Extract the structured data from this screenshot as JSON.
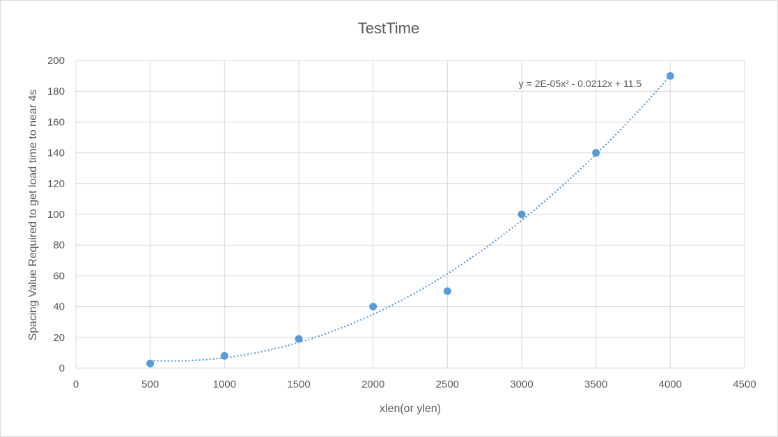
{
  "chart_data": {
    "type": "scatter",
    "title": "TestTime",
    "xlabel": "xlen(or ylen)",
    "ylabel": "Spacing Value Required to get load time to near 4s",
    "xlim": [
      0,
      4500
    ],
    "ylim": [
      0,
      200
    ],
    "x_ticks": [
      0,
      500,
      1000,
      1500,
      2000,
      2500,
      3000,
      3500,
      4000,
      4500
    ],
    "y_ticks": [
      0,
      20,
      40,
      60,
      80,
      100,
      120,
      140,
      160,
      180,
      200
    ],
    "grid": true,
    "series": [
      {
        "x": [
          500,
          1000,
          1500,
          2000,
          2500,
          3000,
          3500,
          4000
        ],
        "y": [
          3,
          8,
          19,
          40,
          50,
          100,
          140,
          190
        ],
        "color": "#5b9bd5"
      }
    ],
    "trendline": {
      "type": "polynomial",
      "order": 2,
      "equation": "y = 2E-05x² - 0.0212x + 11.5",
      "style": "dotted",
      "color": "#5b9bd5",
      "x_range": [
        500,
        4000
      ]
    }
  }
}
